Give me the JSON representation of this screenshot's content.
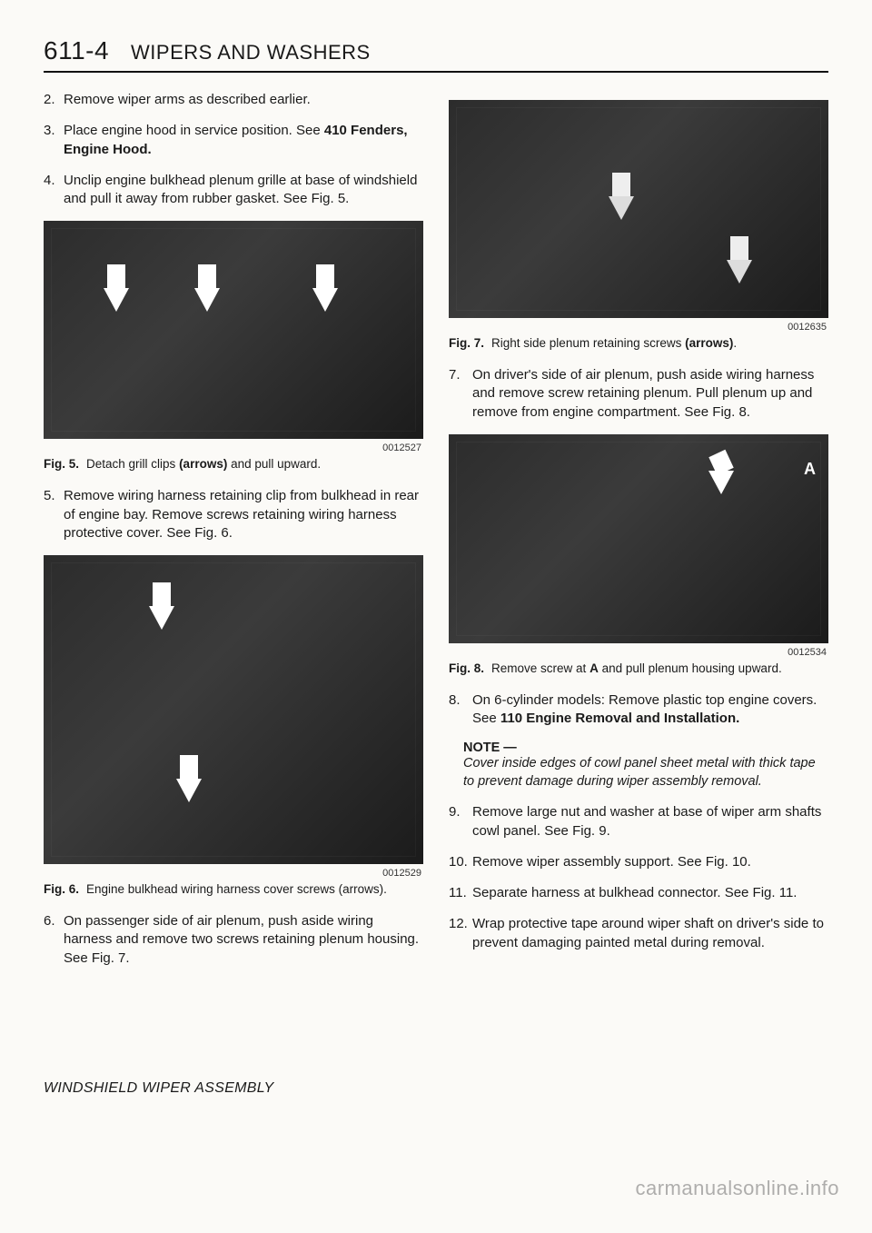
{
  "header": {
    "page_number": "611-4",
    "title": "WIPERS AND WASHERS"
  },
  "left": {
    "steps_top": [
      {
        "n": "2.",
        "text": "Remove wiper arms as described earlier."
      },
      {
        "n": "3.",
        "text": "Place engine hood in service position. See <b>410 Fenders, Engine Hood.</b>"
      },
      {
        "n": "4.",
        "text": "Unclip engine bulkhead plenum grille at base of windshield and pull it away from rubber gasket. See Fig. 5."
      }
    ],
    "fig5": {
      "image_id": "0012527",
      "caption_label": "Fig. 5.",
      "caption_text": "Detach grill clips <b>(arrows)</b> and pull upward."
    },
    "steps_mid": [
      {
        "n": "5.",
        "text": "Remove wiring harness retaining clip from bulkhead in rear of engine bay. Remove screws retaining wiring harness protective cover. See Fig. 6."
      }
    ],
    "fig6": {
      "image_id": "0012529",
      "caption_label": "Fig. 6.",
      "caption_text": "Engine bulkhead wiring harness cover screws (arrows)."
    },
    "steps_bot": [
      {
        "n": "6.",
        "text": "On passenger side of air plenum, push aside wiring harness and remove two screws retaining plenum housing. See Fig. 7."
      }
    ]
  },
  "right": {
    "fig7": {
      "image_id": "0012635",
      "caption_label": "Fig. 7.",
      "caption_text": "Right side plenum retaining screws <b>(arrows)</b>."
    },
    "steps_top": [
      {
        "n": "7.",
        "text": "On driver's side of air plenum, push aside wiring harness and remove screw retaining plenum. Pull plenum up and remove from engine compartment. See Fig. 8."
      }
    ],
    "fig8": {
      "image_id": "0012534",
      "caption_label": "Fig. 8.",
      "caption_text": "Remove screw at <b>A</b> and pull plenum housing upward.",
      "annot_a": "A"
    },
    "steps_mid": [
      {
        "n": "8.",
        "text": "On 6-cylinder models: Remove plastic top engine covers. See <b>110 Engine Removal and Installation.</b>"
      }
    ],
    "note": {
      "label": "NOTE —",
      "body": "Cover inside edges of cowl panel sheet metal with thick tape to prevent damage during wiper assembly removal."
    },
    "steps_bot": [
      {
        "n": "9.",
        "text": "Remove large nut and washer at base of wiper arm shafts cowl panel. See Fig. 9."
      },
      {
        "n": "10.",
        "text": "Remove wiper assembly support. See Fig. 10."
      },
      {
        "n": "11.",
        "text": "Separate harness at bulkhead connector. See Fig. 11."
      },
      {
        "n": "12.",
        "text": "Wrap protective tape around wiper shaft on driver's side to prevent damaging painted metal during removal."
      }
    ]
  },
  "footer": {
    "section": "WINDSHIELD WIPER ASSEMBLY"
  },
  "watermark": "carmanualsonline.info"
}
